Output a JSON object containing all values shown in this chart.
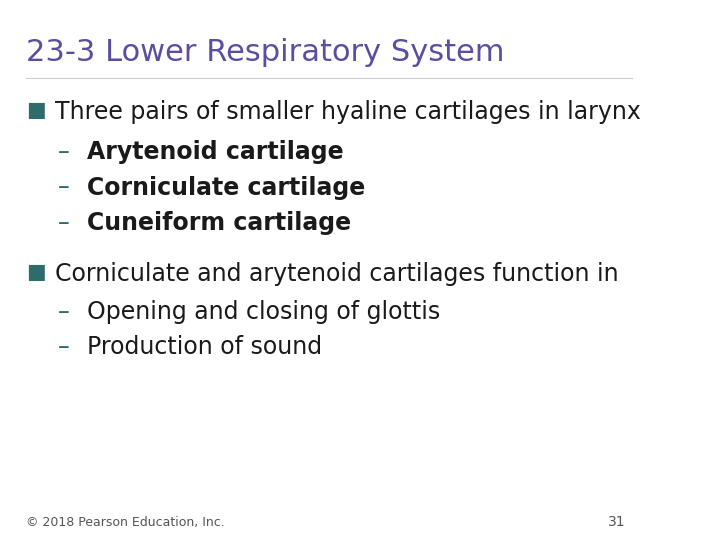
{
  "title": "23-3 Lower Respiratory System",
  "title_color": "#5B4EA0",
  "title_fontsize": 22,
  "background_color": "#FFFFFF",
  "bullet_color": "#2E6B6B",
  "sub_bullet_color": "#2E6B6B",
  "bullet1_text": "Three pairs of smaller hyaline cartilages in larynx",
  "bullet1_subs": [
    "Arytenoid cartilage",
    "Corniculate cartilage",
    "Cuneiform cartilage"
  ],
  "bullet1_subs_bold": true,
  "bullet2_text": "Corniculate and arytenoid cartilages function in",
  "bullet2_subs": [
    "Opening and closing of glottis",
    "Production of sound"
  ],
  "bullet2_subs_bold": false,
  "footer_text": "© 2018 Pearson Education, Inc.",
  "page_number": "31",
  "bullet_fontsize": 17,
  "sub_fontsize": 17,
  "footer_fontsize": 9
}
